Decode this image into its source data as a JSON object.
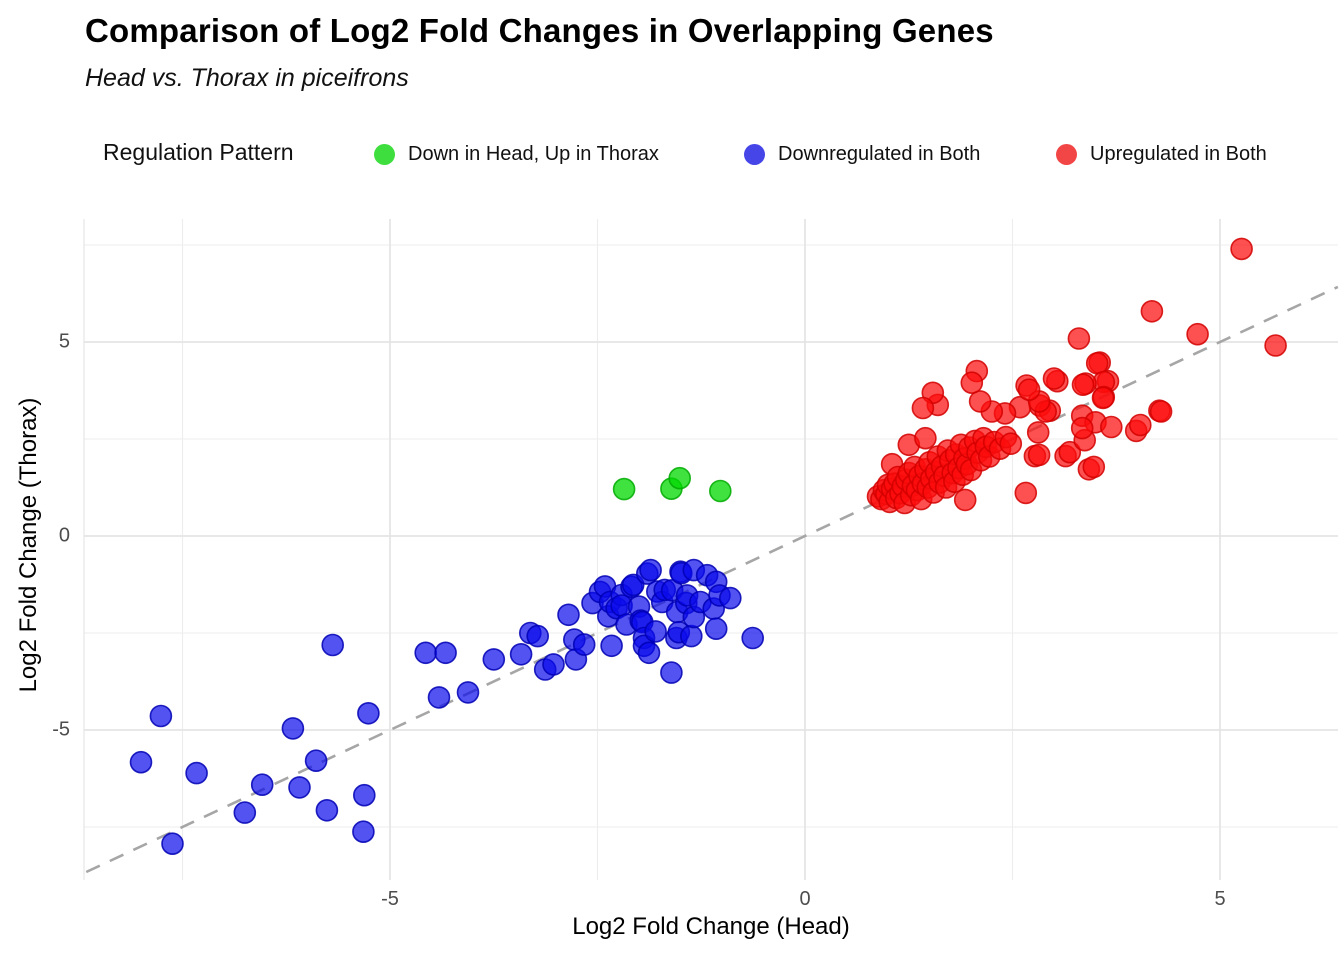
{
  "header": {
    "title": "Comparison of Log2 Fold Changes in Overlapping Genes",
    "subtitle": "Head vs. Thorax in piceifrons"
  },
  "legend": {
    "title": "Regulation Pattern",
    "items": [
      {
        "label": "Down in Head, Up in Thorax",
        "color": "#3fde3f"
      },
      {
        "label": "Downregulated in Both",
        "color": "#4545e8"
      },
      {
        "label": "Upregulated in Both",
        "color": "#f24545"
      }
    ]
  },
  "axes": {
    "x": {
      "title": "Log2 Fold Change (Head)",
      "tick_labels": [
        "-5",
        "0",
        "5"
      ],
      "tick_values": [
        -5,
        0,
        5
      ]
    },
    "y": {
      "title": "Log2 Fold Change (Thorax)",
      "tick_labels": [
        "5",
        "0",
        "-5"
      ],
      "tick_values": [
        5,
        0,
        -5
      ]
    }
  },
  "chart_data": {
    "type": "scatter",
    "title": "Comparison of Log2 Fold Changes in Overlapping Genes",
    "subtitle": "Head vs. Thorax in piceifrons",
    "xlabel": "Log2 Fold Change (Head)",
    "ylabel": "Log2 Fold Change (Thorax)",
    "xlim": [
      -8.7,
      6.45
    ],
    "ylim": [
      -8.85,
      8.15
    ],
    "grid": true,
    "x_grid_major": [
      -5,
      0,
      5
    ],
    "x_grid_minor": [
      -7.5,
      -2.5,
      2.5
    ],
    "y_grid_major": [
      -5,
      0,
      5
    ],
    "y_grid_minor": [
      -7.5,
      -2.5,
      2.5,
      7.5
    ],
    "legend_position": "top",
    "reference_line": {
      "slope": 1,
      "intercept": 0,
      "style": "dashed",
      "color": "#a6a6a6",
      "x_start": -8.66,
      "x_end": 6.42
    },
    "gridline_major_color": "#e4e4e4",
    "gridline_minor_color": "#ededed",
    "series": [
      {
        "name": "Down in Head, Up in Thorax",
        "fill": "rgba(0,216,0,0.75)",
        "stroke": "rgba(0,170,0,0.85)",
        "points": [
          [
            -2.18,
            1.21
          ],
          [
            -1.61,
            1.22
          ],
          [
            -1.51,
            1.49
          ],
          [
            -1.02,
            1.16
          ]
        ]
      },
      {
        "name": "Downregulated in Both",
        "fill": "rgba(10,10,235,0.70)",
        "stroke": "rgba(0,0,180,0.85)",
        "points": [
          [
            -8.0,
            -5.83
          ],
          [
            -7.76,
            -4.64
          ],
          [
            -7.62,
            -7.93
          ],
          [
            -7.33,
            -6.11
          ],
          [
            -6.75,
            -7.13
          ],
          [
            -6.54,
            -6.41
          ],
          [
            -6.17,
            -4.96
          ],
          [
            -6.09,
            -6.48
          ],
          [
            -5.89,
            -5.79
          ],
          [
            -5.76,
            -7.07
          ],
          [
            -5.69,
            -2.81
          ],
          [
            -5.32,
            -7.62
          ],
          [
            -5.31,
            -6.68
          ],
          [
            -5.26,
            -4.57
          ],
          [
            -4.57,
            -3.01
          ],
          [
            -4.41,
            -4.16
          ],
          [
            -4.33,
            -3.01
          ],
          [
            -4.06,
            -4.03
          ],
          [
            -3.75,
            -3.18
          ],
          [
            -3.42,
            -3.05
          ],
          [
            -3.31,
            -2.5
          ],
          [
            -3.22,
            -2.58
          ],
          [
            -3.13,
            -3.44
          ],
          [
            -3.03,
            -3.31
          ],
          [
            -2.85,
            -2.03
          ],
          [
            -2.78,
            -2.67
          ],
          [
            -2.76,
            -3.18
          ],
          [
            -2.66,
            -2.8
          ],
          [
            -2.56,
            -1.73
          ],
          [
            -2.47,
            -1.44
          ],
          [
            -2.41,
            -1.3
          ],
          [
            -2.37,
            -2.07
          ],
          [
            -2.35,
            -1.7
          ],
          [
            -2.33,
            -2.83
          ],
          [
            -2.27,
            -1.86
          ],
          [
            -2.21,
            -1.52
          ],
          [
            -2.21,
            -1.79
          ],
          [
            -2.15,
            -2.28
          ],
          [
            -2.09,
            -1.31
          ],
          [
            -2.07,
            -1.26
          ],
          [
            -2.0,
            -1.82
          ],
          [
            -1.98,
            -2.18
          ],
          [
            -1.96,
            -2.22
          ],
          [
            -1.94,
            -2.63
          ],
          [
            -1.94,
            -2.83
          ],
          [
            -1.9,
            -0.97
          ],
          [
            -1.88,
            -3.01
          ],
          [
            -1.86,
            -0.88
          ],
          [
            -1.8,
            -2.46
          ],
          [
            -1.78,
            -1.43
          ],
          [
            -1.72,
            -1.7
          ],
          [
            -1.69,
            -1.39
          ],
          [
            -1.61,
            -3.52
          ],
          [
            -1.6,
            -1.4
          ],
          [
            -1.55,
            -2.63
          ],
          [
            -1.54,
            -1.96
          ],
          [
            -1.52,
            -2.48
          ],
          [
            -1.5,
            -0.92
          ],
          [
            -1.49,
            -0.96
          ],
          [
            -1.43,
            -1.73
          ],
          [
            -1.42,
            -1.53
          ],
          [
            -1.37,
            -2.58
          ],
          [
            -1.34,
            -0.88
          ],
          [
            -1.34,
            -2.09
          ],
          [
            -1.26,
            -1.7
          ],
          [
            -1.18,
            -1.01
          ],
          [
            -1.1,
            -1.87
          ],
          [
            -1.07,
            -1.18
          ],
          [
            -1.07,
            -2.39
          ],
          [
            -1.03,
            -1.53
          ],
          [
            -0.9,
            -1.6
          ],
          [
            -0.63,
            -2.63
          ]
        ]
      },
      {
        "name": "Upregulated in Both",
        "fill": "rgba(252,13,13,0.72)",
        "stroke": "rgba(210,0,0,0.85)",
        "points": [
          [
            5.26,
            7.4
          ],
          [
            5.67,
            4.91
          ],
          [
            4.73,
            5.2
          ],
          [
            4.18,
            5.79
          ],
          [
            3.3,
            5.09
          ],
          [
            3.55,
            4.47
          ],
          [
            3.52,
            4.45
          ],
          [
            3.65,
            3.99
          ],
          [
            3.6,
            3.97
          ],
          [
            3.6,
            3.58
          ],
          [
            3.38,
            3.93
          ],
          [
            3.35,
            3.9
          ],
          [
            3.04,
            3.99
          ],
          [
            3.0,
            4.06
          ],
          [
            2.67,
            3.88
          ],
          [
            2.83,
            3.36
          ],
          [
            2.59,
            3.32
          ],
          [
            2.95,
            3.23
          ],
          [
            3.34,
            3.1
          ],
          [
            3.5,
            2.93
          ],
          [
            4.27,
            3.23
          ],
          [
            4.29,
            3.21
          ],
          [
            3.99,
            2.71
          ],
          [
            4.04,
            2.86
          ],
          [
            3.59,
            3.56
          ],
          [
            2.9,
            3.21
          ],
          [
            2.82,
            3.47
          ],
          [
            2.41,
            3.16
          ],
          [
            2.25,
            3.21
          ],
          [
            2.11,
            3.47
          ],
          [
            2.07,
            4.25
          ],
          [
            2.01,
            3.95
          ],
          [
            1.6,
            3.38
          ],
          [
            1.54,
            3.69
          ],
          [
            1.42,
            3.3
          ],
          [
            2.7,
            3.77
          ],
          [
            2.81,
            2.67
          ],
          [
            2.77,
            2.06
          ],
          [
            3.14,
            2.06
          ],
          [
            3.42,
            1.72
          ],
          [
            2.82,
            2.09
          ],
          [
            3.19,
            2.16
          ],
          [
            3.37,
            2.47
          ],
          [
            3.34,
            2.78
          ],
          [
            3.48,
            1.78
          ],
          [
            3.69,
            2.81
          ],
          [
            2.66,
            1.11
          ],
          [
            1.93,
            0.93
          ],
          [
            0.88,
            1.02
          ],
          [
            0.92,
            0.95
          ],
          [
            0.95,
            1.18
          ],
          [
            0.98,
            1.08
          ],
          [
            1.0,
            1.32
          ],
          [
            1.02,
            0.88
          ],
          [
            1.05,
            1.22
          ],
          [
            1.05,
            1.85
          ],
          [
            1.08,
            1.35
          ],
          [
            1.1,
            0.98
          ],
          [
            1.12,
            1.52
          ],
          [
            1.15,
            1.1
          ],
          [
            1.18,
            1.28
          ],
          [
            1.2,
            0.85
          ],
          [
            1.22,
            1.45
          ],
          [
            1.25,
            1.62
          ],
          [
            1.25,
            2.35
          ],
          [
            1.28,
            1.05
          ],
          [
            1.3,
            1.3
          ],
          [
            1.32,
            1.78
          ],
          [
            1.35,
            1.18
          ],
          [
            1.38,
            1.55
          ],
          [
            1.4,
            0.95
          ],
          [
            1.42,
            1.35
          ],
          [
            1.45,
            1.72
          ],
          [
            1.45,
            2.52
          ],
          [
            1.48,
            1.25
          ],
          [
            1.5,
            1.9
          ],
          [
            1.52,
            1.48
          ],
          [
            1.55,
            1.12
          ],
          [
            1.58,
            1.65
          ],
          [
            1.6,
            2.05
          ],
          [
            1.62,
            1.38
          ],
          [
            1.65,
            1.8
          ],
          [
            1.68,
            1.55
          ],
          [
            1.7,
            1.25
          ],
          [
            1.72,
            2.2
          ],
          [
            1.75,
            1.95
          ],
          [
            1.78,
            1.62
          ],
          [
            1.8,
            1.4
          ],
          [
            1.82,
            2.1
          ],
          [
            1.85,
            1.75
          ],
          [
            1.88,
            2.35
          ],
          [
            1.9,
            1.58
          ],
          [
            1.92,
            2.0
          ],
          [
            1.95,
            1.85
          ],
          [
            1.98,
            2.28
          ],
          [
            2.0,
            1.7
          ],
          [
            2.05,
            2.45
          ],
          [
            2.08,
            2.15
          ],
          [
            2.12,
            1.95
          ],
          [
            2.15,
            2.52
          ],
          [
            2.18,
            2.3
          ],
          [
            2.22,
            2.05
          ],
          [
            2.28,
            2.42
          ],
          [
            2.35,
            2.25
          ],
          [
            2.42,
            2.55
          ],
          [
            2.48,
            2.38
          ]
        ]
      }
    ]
  }
}
